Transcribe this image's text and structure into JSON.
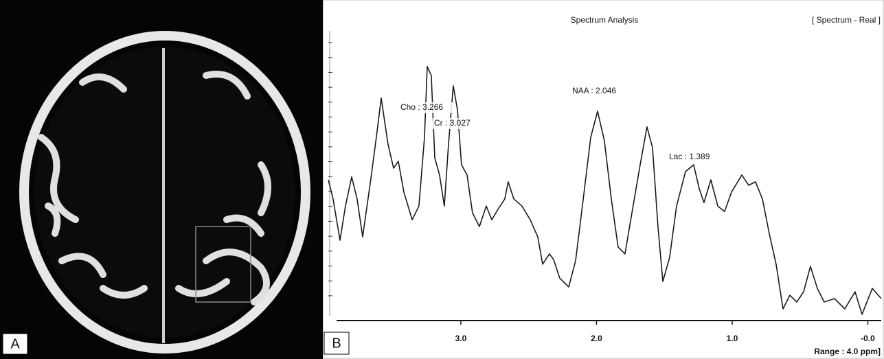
{
  "panel_labels": [
    "A",
    "B"
  ],
  "chart_data": {
    "type": "line",
    "title": "Spectrum Analysis",
    "subtitle": "[ Spectrum - Real ]",
    "range_label": "Range : 4.0 ppm]",
    "annotations": [
      "Cho : 3.266",
      "Cr : 3.027",
      "NAA : 2.046",
      "Lac : 1.389"
    ],
    "x": [
      3.977,
      3.942,
      3.891,
      3.851,
      3.805,
      3.765,
      3.724,
      3.663,
      3.623,
      3.587,
      3.537,
      3.496,
      3.461,
      3.42,
      3.359,
      3.309,
      3.268,
      3.248,
      3.218,
      3.192,
      3.157,
      3.122,
      3.091,
      3.056,
      3.025,
      2.995,
      2.954,
      2.914,
      2.863,
      2.813,
      2.772,
      2.727,
      2.676,
      2.651,
      2.61,
      2.549,
      2.489,
      2.433,
      2.397,
      2.347,
      2.316,
      2.271,
      2.205,
      2.154,
      2.104,
      2.043,
      1.992,
      1.942,
      1.891,
      1.841,
      1.79,
      1.739,
      1.678,
      1.628,
      1.587,
      1.547,
      1.511,
      1.461,
      1.41,
      1.344,
      1.284,
      1.243,
      1.208,
      1.157,
      1.106,
      1.056,
      1.005,
      0.929,
      0.878,
      0.828,
      0.777,
      0.727,
      0.676,
      0.625,
      0.575,
      0.524,
      0.473,
      0.423,
      0.372,
      0.322,
      0.246,
      0.17,
      0.094,
      0.043,
      -0.033,
      -0.099
    ],
    "series": [
      {
        "color": "#1a1a1a",
        "values": [
          49.4,
          42.7,
          28.2,
          40.2,
          50.4,
          42.7,
          29.4,
          49.9,
          64.3,
          78.1,
          61.9,
          53.5,
          55.9,
          45.1,
          35.4,
          40.2,
          64.3,
          89.2,
          86.0,
          57.1,
          51.1,
          40.2,
          61.9,
          82.4,
          74.0,
          54.7,
          51.1,
          37.8,
          33.0,
          40.2,
          35.4,
          39.0,
          42.7,
          48.7,
          42.7,
          40.2,
          35.4,
          29.4,
          19.8,
          23.4,
          21.4,
          14.9,
          11.8,
          21.0,
          40.2,
          64.3,
          73.5,
          63.1,
          42.7,
          25.8,
          23.4,
          37.8,
          54.7,
          68.0,
          60.7,
          33.0,
          13.7,
          22.2,
          40.2,
          52.3,
          54.7,
          46.3,
          41.4,
          49.4,
          40.2,
          38.3,
          45.1,
          51.1,
          47.5,
          48.7,
          42.7,
          30.6,
          19.8,
          4.1,
          8.9,
          6.5,
          10.1,
          19.0,
          11.3,
          6.5,
          7.7,
          4.1,
          10.1,
          2.2,
          11.3,
          7.7
        ]
      }
    ],
    "xlim": [
      3.977,
      -0.099
    ],
    "xticks": [
      {
        "value": 3,
        "label": "3.0"
      },
      {
        "value": 2,
        "label": "2.0"
      },
      {
        "value": 1,
        "label": "1.0"
      },
      {
        "value": 0,
        "label": "-0.0"
      }
    ],
    "ylim": [
      0,
      100
    ]
  }
}
